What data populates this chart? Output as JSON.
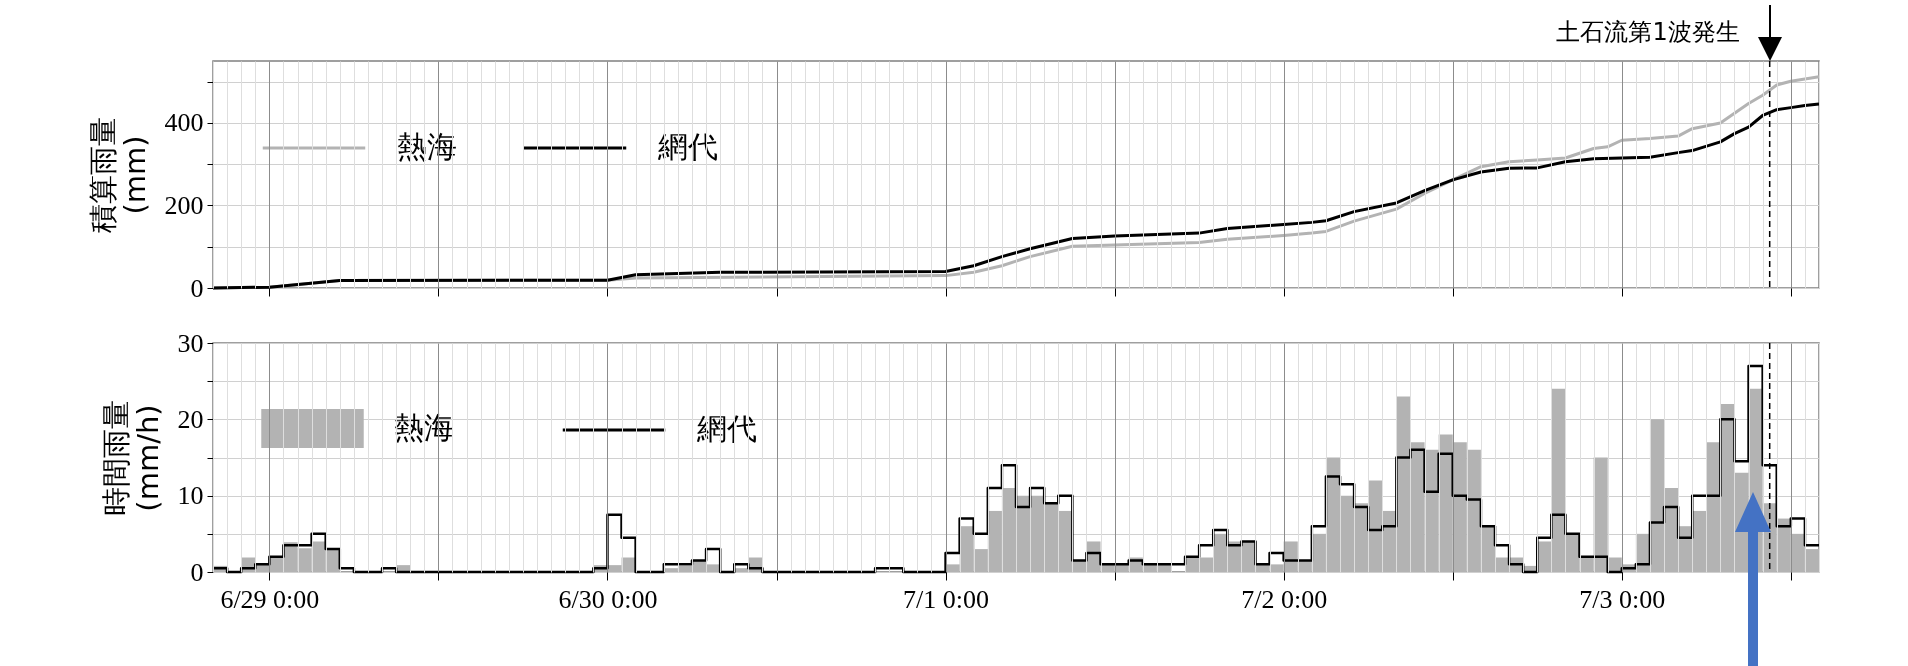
{
  "chart_data": [
    {
      "type": "line",
      "xlim": [
        "--06-28T20:00",
        "--07-03T14:00"
      ],
      "xticks": [
        {
          "value": "--06-29T00:00",
          "label": null
        },
        {
          "value": "--06-29T12:00",
          "label": null
        },
        {
          "value": "--06-30T00:00",
          "label": null
        },
        {
          "value": "--06-30T12:00",
          "label": null
        },
        {
          "value": "--07-01T00:00",
          "label": null
        },
        {
          "value": "--07-01T12:00",
          "label": null
        },
        {
          "value": "--07-02T00:00",
          "label": null
        },
        {
          "value": "--07-02T12:00",
          "label": null
        },
        {
          "value": "--07-03T00:00",
          "label": null
        },
        {
          "value": "--07-03T12:00",
          "label": null
        }
      ],
      "ylim": [
        0,
        550
      ],
      "yticks": [
        0,
        {
          "value": 100,
          "label": null
        },
        200,
        {
          "value": 300,
          "label": null
        },
        400,
        {
          "value": 500,
          "label": null
        }
      ],
      "ylabel": "積算雨量\n(mm)",
      "grid": true,
      "legend": "top left",
      "tick_labels": "y",
      "series": [
        {
          "name": "熱海",
          "color": "#b3b3b3",
          "x": [
            "--06-28T20:00",
            "--06-29T00:00",
            "--06-29T05:00",
            "--06-30T00:00",
            "--06-30T02:00",
            "--07-01T00:00",
            "--07-01T02:00",
            "--07-01T04:00",
            "--07-01T06:00",
            "--07-01T09:00",
            "--07-01T12:00",
            "--07-01T18:00",
            "--07-01T20:00",
            "--07-02T00:00",
            "--07-02T02:00",
            "--07-02T03:00",
            "--07-02T05:00",
            "--07-02T08:00",
            "--07-02T10:00",
            "--07-02T12:00",
            "--07-02T14:00",
            "--07-02T16:00",
            "--07-02T18:00",
            "--07-02T20:00",
            "--07-02T22:00",
            "--07-02T23:00",
            "--07-03T00:00",
            "--07-03T02:00",
            "--07-03T04:00",
            "--07-03T05:00",
            "--07-03T07:00",
            "--07-03T09:00",
            "--07-03T10:00",
            "--07-03T11:00",
            "--07-03T12:00",
            "--07-03T14:00"
          ],
          "values": [
            0,
            2,
            18,
            19,
            24,
            30,
            38,
            54,
            76,
            101,
            104,
            110,
            118,
            127,
            133,
            137,
            162,
            191,
            229,
            262,
            294,
            306,
            310,
            315,
            338,
            342,
            358,
            362,
            368,
            386,
            400,
            447,
            467,
            492,
            501,
            512
          ]
        },
        {
          "name": "網代",
          "color": "#000000",
          "x": [
            "--06-28T20:00",
            "--06-29T00:00",
            "--06-29T05:00",
            "--06-30T00:00",
            "--06-30T02:00",
            "--06-30T08:00",
            "--07-01T00:00",
            "--07-01T02:00",
            "--07-01T04:00",
            "--07-01T06:00",
            "--07-01T09:00",
            "--07-01T12:00",
            "--07-01T18:00",
            "--07-01T20:00",
            "--07-02T00:00",
            "--07-02T02:00",
            "--07-02T03:00",
            "--07-02T05:00",
            "--07-02T08:00",
            "--07-02T10:00",
            "--07-02T12:00",
            "--07-02T14:00",
            "--07-02T16:00",
            "--07-02T18:00",
            "--07-02T20:00",
            "--07-02T22:00",
            "--07-03T00:00",
            "--07-03T02:00",
            "--07-03T04:00",
            "--07-03T05:00",
            "--07-03T07:00",
            "--07-03T08:00",
            "--07-03T09:00",
            "--07-03T10:00",
            "--07-03T11:00",
            "--07-03T12:00",
            "--07-03T13:00",
            "--07-03T14:00"
          ],
          "values": [
            0,
            2,
            18,
            19,
            32,
            38,
            40,
            54,
            76,
            95,
            120,
            126,
            133,
            144,
            154,
            159,
            163,
            185,
            206,
            236,
            262,
            281,
            290,
            291,
            306,
            313,
            315,
            317,
            328,
            333,
            354,
            374,
            390,
            418,
            432,
            437,
            442,
            446
          ]
        }
      ],
      "ref_lines": [
        {
          "axis": "x",
          "value": "--07-03T10:30",
          "label": "土石流第1波発生",
          "line_style": "dashed",
          "color": "#000000"
        }
      ]
    },
    {
      "type": "bar",
      "xlim": [
        "--06-28T20:00",
        "--07-03T14:00"
      ],
      "xticks": [
        {
          "value": "--06-29T00:00",
          "label": "6/29 0:00"
        },
        {
          "value": "--06-29T12:00",
          "label": null
        },
        {
          "value": "--06-30T00:00",
          "label": "6/30 0:00"
        },
        {
          "value": "--06-30T12:00",
          "label": null
        },
        {
          "value": "--07-01T00:00",
          "label": "7/1 0:00"
        },
        {
          "value": "--07-01T12:00",
          "label": null
        },
        {
          "value": "--07-02T00:00",
          "label": "7/2 0:00"
        },
        {
          "value": "--07-02T12:00",
          "label": null
        },
        {
          "value": "--07-03T00:00",
          "label": "7/3 0:00"
        },
        {
          "value": "--07-03T12:00",
          "label": null
        }
      ],
      "ylim": [
        0,
        30
      ],
      "yticks": [
        0,
        {
          "value": 5,
          "label": null
        },
        10,
        {
          "value": 15,
          "label": null
        },
        20,
        {
          "value": 25,
          "label": null
        },
        30
      ],
      "ylabel": "時間雨量\n(mm/h)",
      "grid": true,
      "legend": "top left",
      "x": [
        "--06-28T20:30",
        "--06-28T21:30",
        "--06-28T22:30",
        "--06-28T23:30",
        "--06-29T00:30",
        "--06-29T01:30",
        "--06-29T02:30",
        "--06-29T03:30",
        "--06-29T04:30",
        "--06-29T05:30",
        "--06-29T06:30",
        "--06-29T07:30",
        "--06-29T08:30",
        "--06-29T09:30",
        "--06-29T10:30",
        "--06-29T11:30",
        "--06-29T12:30",
        "--06-29T13:30",
        "--06-29T14:30",
        "--06-29T15:30",
        "--06-29T16:30",
        "--06-29T17:30",
        "--06-29T18:30",
        "--06-29T19:30",
        "--06-29T20:30",
        "--06-29T21:30",
        "--06-29T22:30",
        "--06-29T23:30",
        "--06-30T00:30",
        "--06-30T01:30",
        "--06-30T02:30",
        "--06-30T03:30",
        "--06-30T04:30",
        "--06-30T05:30",
        "--06-30T06:30",
        "--06-30T07:30",
        "--06-30T08:30",
        "--06-30T09:30",
        "--06-30T10:30",
        "--06-30T11:30",
        "--06-30T12:30",
        "--06-30T13:30",
        "--06-30T14:30",
        "--06-30T15:30",
        "--06-30T16:30",
        "--06-30T17:30",
        "--06-30T18:30",
        "--06-30T19:30",
        "--06-30T20:30",
        "--06-30T21:30",
        "--06-30T22:30",
        "--06-30T23:30",
        "--07-01T00:30",
        "--07-01T01:30",
        "--07-01T02:30",
        "--07-01T03:30",
        "--07-01T04:30",
        "--07-01T05:30",
        "--07-01T06:30",
        "--07-01T07:30",
        "--07-01T08:30",
        "--07-01T09:30",
        "--07-01T10:30",
        "--07-01T11:30",
        "--07-01T12:30",
        "--07-01T13:30",
        "--07-01T14:30",
        "--07-01T15:30",
        "--07-01T16:30",
        "--07-01T17:30",
        "--07-01T18:30",
        "--07-01T19:30",
        "--07-01T20:30",
        "--07-01T21:30",
        "--07-01T22:30",
        "--07-01T23:30",
        "--07-02T00:30",
        "--07-02T01:30",
        "--07-02T02:30",
        "--07-02T03:30",
        "--07-02T04:30",
        "--07-02T05:30",
        "--07-02T06:30",
        "--07-02T07:30",
        "--07-02T08:30",
        "--07-02T09:30",
        "--07-02T10:30",
        "--07-02T11:30",
        "--07-02T12:30",
        "--07-02T13:30",
        "--07-02T14:30",
        "--07-02T15:30",
        "--07-02T16:30",
        "--07-02T17:30",
        "--07-02T18:30",
        "--07-02T19:30",
        "--07-02T20:30",
        "--07-02T21:30",
        "--07-02T22:30",
        "--07-02T23:30",
        "--07-03T00:30",
        "--07-03T01:30",
        "--07-03T02:30",
        "--07-03T03:30",
        "--07-03T04:30",
        "--07-03T05:30",
        "--07-03T06:30",
        "--07-03T07:30",
        "--07-03T08:30",
        "--07-03T09:30",
        "--07-03T10:30",
        "--07-03T11:30",
        "--07-03T12:30",
        "--07-03T13:30"
      ],
      "series": [
        {
          "name": "熱海",
          "color": "#b3b3b3",
          "values": [
            0.8,
            0,
            1.9,
            1.0,
            2.0,
            3.9,
            3.1,
            4.0,
            3.0,
            0,
            0,
            0,
            0,
            0.9,
            0,
            0,
            0,
            0,
            0,
            0,
            0,
            0,
            0,
            0,
            0,
            0,
            0,
            0.9,
            0.9,
            1.9,
            0,
            0,
            0.5,
            0.8,
            1.5,
            1.0,
            0,
            0.5,
            1.9,
            0,
            0,
            0,
            0,
            0,
            0,
            0,
            0,
            0,
            0,
            0,
            0,
            0,
            1.0,
            6.0,
            3.0,
            8.0,
            11.0,
            10.0,
            10.0,
            9.0,
            8.0,
            1.5,
            4.0,
            1.0,
            1.0,
            1.9,
            1.0,
            1.0,
            0,
            2.0,
            1.9,
            5.0,
            4.0,
            4.0,
            1.0,
            1.0,
            4.0,
            1.5,
            5.0,
            15.0,
            10.0,
            9.0,
            12.0,
            8.0,
            23.0,
            17.0,
            16.0,
            18.0,
            17.0,
            16.0,
            6.0,
            1.9,
            1.9,
            0.8,
            4.0,
            24.0,
            5.0,
            2.0,
            15.0,
            1.9,
            1.0,
            5.0,
            20.0,
            11.0,
            6.0,
            8.0,
            17.0,
            22.0,
            13.0,
            24.0,
            9.0,
            7.0,
            5.0,
            3.0
          ]
        },
        {
          "name": "網代",
          "type": "step",
          "color": "#000000",
          "values": [
            0.5,
            0,
            0.5,
            1.0,
            2.0,
            3.5,
            3.5,
            5.0,
            3.0,
            0.5,
            0,
            0,
            0.5,
            0,
            0,
            0,
            0,
            0,
            0,
            0,
            0,
            0,
            0,
            0,
            0,
            0,
            0,
            0.5,
            7.5,
            4.5,
            0,
            0,
            1.0,
            1.0,
            1.5,
            3.0,
            0,
            1.0,
            0.5,
            0,
            0,
            0,
            0,
            0,
            0,
            0,
            0,
            0.5,
            0.5,
            0,
            0,
            0,
            2.5,
            7.0,
            5.0,
            11.0,
            14.0,
            8.5,
            11.0,
            9.0,
            10.0,
            1.5,
            2.5,
            1.0,
            1.0,
            1.5,
            1.0,
            1.0,
            1.0,
            2.0,
            3.5,
            5.5,
            3.5,
            4.0,
            1.0,
            2.5,
            1.5,
            1.5,
            6.0,
            12.5,
            11.5,
            8.5,
            5.5,
            6.0,
            15.0,
            16.0,
            10.5,
            15.5,
            10.0,
            9.5,
            6.0,
            3.5,
            1.0,
            0,
            4.5,
            7.5,
            5.0,
            2.0,
            2.0,
            0,
            0.5,
            1.0,
            6.5,
            8.5,
            4.5,
            10.0,
            10.0,
            20.0,
            14.5,
            27.0,
            14.0,
            6.0,
            7.0,
            3.5
          ]
        }
      ],
      "ref_lines": [
        {
          "axis": "x",
          "value": "--07-03T10:30",
          "line_style": "dashed",
          "color": "#000000"
        }
      ]
    }
  ]
}
